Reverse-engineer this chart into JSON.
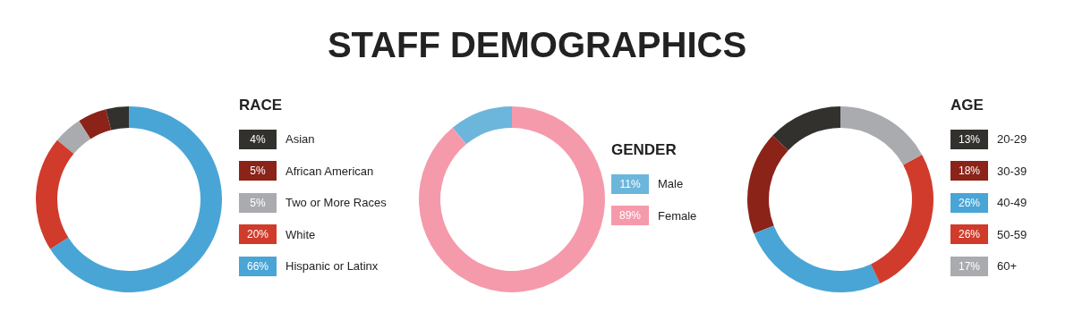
{
  "chart_data": [
    {
      "type": "donut",
      "legend_title": "RACE",
      "legend": "right",
      "categories": [
        "Asian",
        "African American",
        "Two or More Races",
        "White",
        "Hispanic or Latinx"
      ],
      "values": [
        4,
        5,
        5,
        20,
        66
      ],
      "value_labels": [
        "4%",
        "5%",
        "5%",
        "20%",
        "66%"
      ],
      "colors": [
        "#33312e",
        "#8b2318",
        "#a9abae",
        "#d03b2b",
        "#49a5d6"
      ]
    },
    {
      "type": "donut",
      "title": "STAFF DEMOGRAPHICS",
      "legend_title": "GENDER",
      "legend": "right",
      "categories": [
        "Male",
        "Female"
      ],
      "values": [
        11,
        89
      ],
      "value_labels": [
        "11%",
        "89%"
      ],
      "colors": [
        "#6cb6dc",
        "#f59aab"
      ]
    },
    {
      "type": "donut",
      "legend_title": "AGE",
      "legend": "right",
      "categories": [
        "20-29",
        "30-39",
        "40-49",
        "50-59",
        "60+"
      ],
      "values": [
        13,
        18,
        26,
        26,
        17
      ],
      "value_labels": [
        "13%",
        "18%",
        "26%",
        "26%",
        "17%"
      ],
      "colors": [
        "#33312e",
        "#8b2318",
        "#49a5d6",
        "#d03b2b",
        "#a9abae"
      ]
    }
  ]
}
